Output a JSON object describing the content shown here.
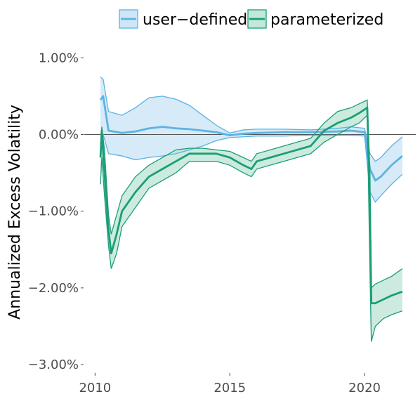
{
  "chart_data": {
    "type": "area",
    "ylabel": "Annualized Excess Volatility",
    "xlabel": "",
    "xlim": [
      2009.6,
      2021.9
    ],
    "ylim": [
      -3.1,
      1.25
    ],
    "x_ticks": [
      2010,
      2015,
      2020
    ],
    "x_tick_labels": [
      "2010",
      "2015",
      "2020"
    ],
    "y_ticks": [
      1.0,
      0.0,
      -1.0,
      -2.0,
      -3.0
    ],
    "y_tick_labels": [
      "1.00%",
      "0.00%",
      "−1.00%",
      "−2.00%",
      "−3.00%"
    ],
    "zero_line": true,
    "grid": false,
    "legend_position": "top",
    "series": [
      {
        "name": "user−defined",
        "line_color": "#5cb3e4",
        "fill_color": "#cfe6f6",
        "x": [
          2010.2,
          2010.3,
          2010.5,
          2011.0,
          2011.5,
          2012.0,
          2012.5,
          2013.0,
          2013.5,
          2014.0,
          2014.5,
          2015.0,
          2015.5,
          2016.0,
          2017.0,
          2018.0,
          2019.0,
          2019.5,
          2020.0,
          2020.2,
          2020.4,
          2020.6,
          2021.0,
          2021.4
        ],
        "mean": [
          0.45,
          0.5,
          0.05,
          0.02,
          0.04,
          0.08,
          0.1,
          0.08,
          0.07,
          0.05,
          0.03,
          -0.01,
          0.01,
          0.02,
          0.03,
          0.03,
          0.04,
          0.05,
          0.03,
          -0.45,
          -0.6,
          -0.55,
          -0.4,
          -0.28
        ],
        "upper": [
          0.75,
          0.72,
          0.3,
          0.25,
          0.35,
          0.48,
          0.5,
          0.46,
          0.38,
          0.25,
          0.12,
          0.02,
          0.06,
          0.07,
          0.07,
          0.06,
          0.08,
          0.1,
          0.08,
          -0.25,
          -0.35,
          -0.3,
          -0.15,
          -0.03
        ],
        "lower": [
          -0.1,
          0.0,
          -0.25,
          -0.28,
          -0.33,
          -0.3,
          -0.28,
          -0.25,
          -0.2,
          -0.15,
          -0.08,
          -0.04,
          -0.03,
          -0.02,
          -0.02,
          -0.01,
          -0.01,
          -0.01,
          -0.02,
          -0.75,
          -0.88,
          -0.8,
          -0.65,
          -0.52
        ]
      },
      {
        "name": "parameterized",
        "line_color": "#1b9e77",
        "fill_color": "#c3e8d8",
        "x": [
          2010.2,
          2010.25,
          2010.35,
          2010.5,
          2010.6,
          2010.8,
          2011.0,
          2011.5,
          2012.0,
          2012.5,
          2013.0,
          2013.5,
          2014.0,
          2014.5,
          2015.0,
          2015.5,
          2015.8,
          2016.0,
          2016.5,
          2017.0,
          2017.5,
          2018.0,
          2018.5,
          2019.0,
          2019.5,
          2019.8,
          2020.1,
          2020.2,
          2020.25,
          2020.4,
          2020.7,
          2021.0,
          2021.4
        ],
        "mean": [
          -0.3,
          0.05,
          -0.5,
          -1.25,
          -1.55,
          -1.3,
          -1.0,
          -0.75,
          -0.55,
          -0.45,
          -0.35,
          -0.25,
          -0.25,
          -0.25,
          -0.3,
          -0.4,
          -0.45,
          -0.35,
          -0.3,
          -0.25,
          -0.2,
          -0.15,
          0.05,
          0.15,
          0.22,
          0.28,
          0.35,
          -1.0,
          -2.2,
          -2.2,
          -2.15,
          -2.1,
          -2.05
        ],
        "upper": [
          -0.15,
          0.1,
          -0.2,
          -1.05,
          -1.3,
          -1.05,
          -0.8,
          -0.55,
          -0.4,
          -0.3,
          -0.2,
          -0.18,
          -0.18,
          -0.2,
          -0.22,
          -0.3,
          -0.35,
          -0.25,
          -0.2,
          -0.15,
          -0.1,
          -0.05,
          0.15,
          0.3,
          0.35,
          0.4,
          0.45,
          -0.5,
          -2.0,
          -1.95,
          -1.9,
          -1.85,
          -1.75
        ],
        "lower": [
          -0.65,
          -0.3,
          -0.8,
          -1.45,
          -1.75,
          -1.55,
          -1.2,
          -0.95,
          -0.7,
          -0.6,
          -0.5,
          -0.35,
          -0.35,
          -0.35,
          -0.4,
          -0.5,
          -0.55,
          -0.45,
          -0.4,
          -0.35,
          -0.3,
          -0.25,
          -0.1,
          0.0,
          0.1,
          0.15,
          0.25,
          -1.8,
          -2.7,
          -2.5,
          -2.4,
          -2.35,
          -2.3
        ]
      }
    ]
  }
}
